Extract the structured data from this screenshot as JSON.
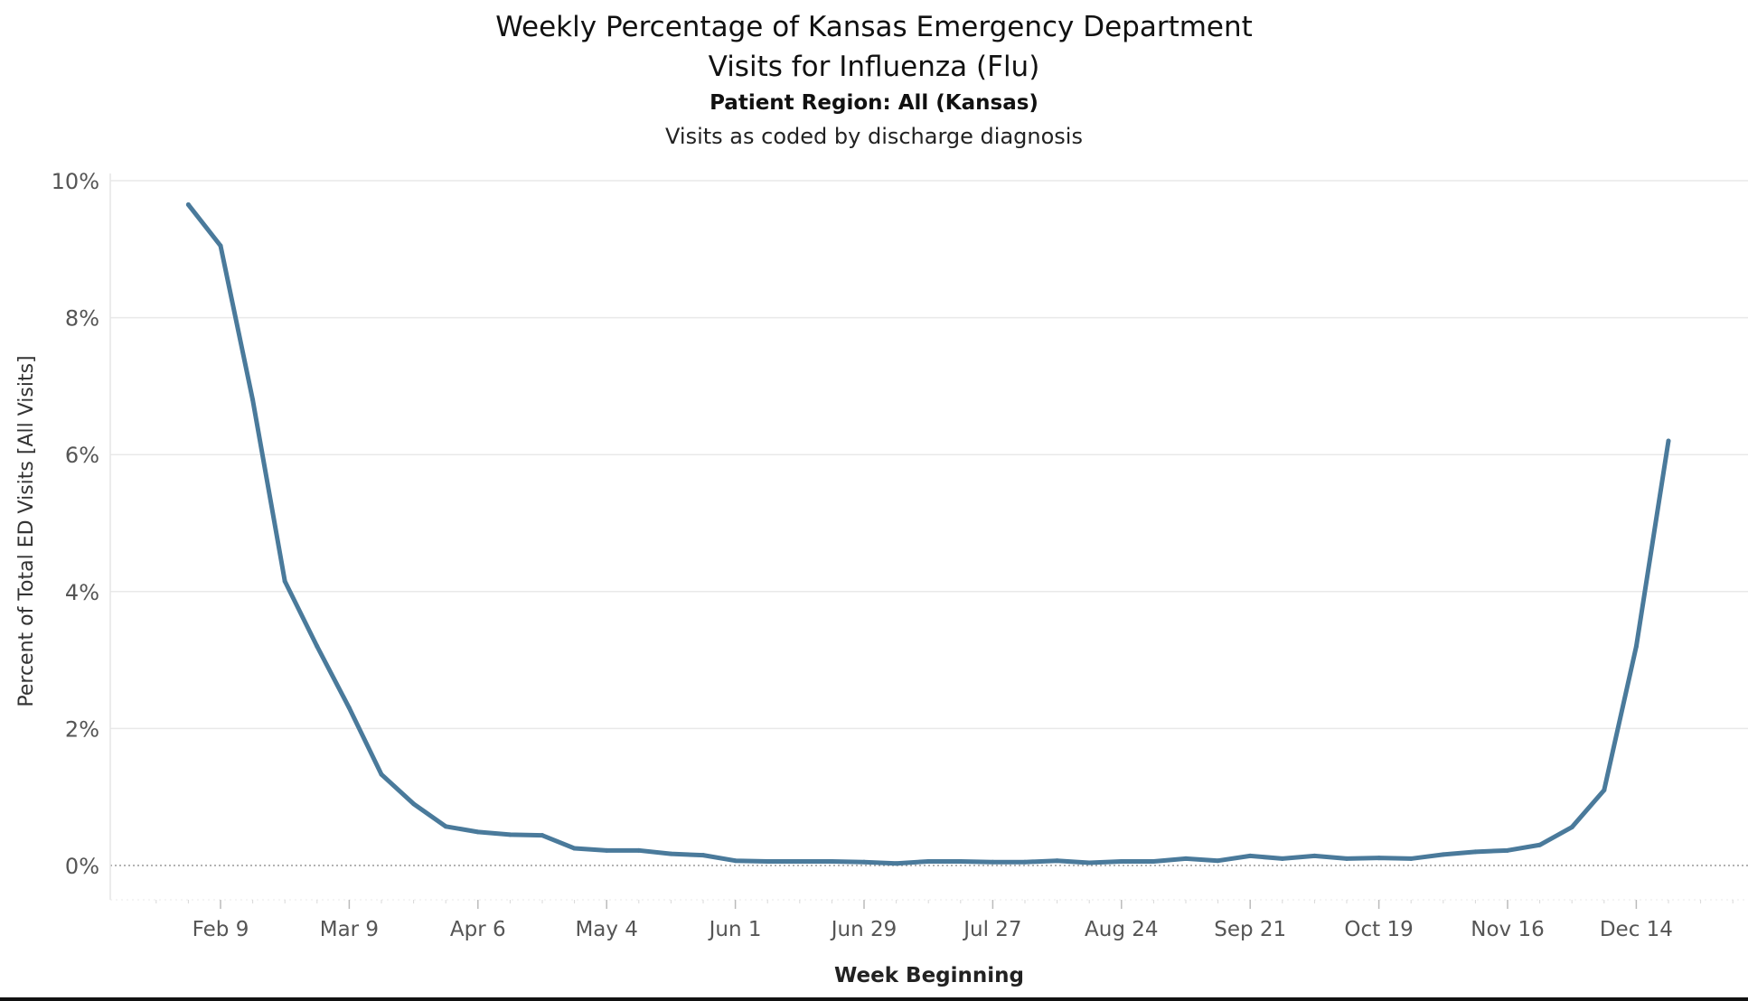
{
  "chart_data": {
    "type": "line",
    "title_lines": [
      "Weekly Percentage of Kansas Emergency Department",
      "Visits for Influenza (Flu)"
    ],
    "subtitle": "Patient Region: All (Kansas)",
    "note": "Visits as coded by discharge diagnosis",
    "xlabel": "Week Beginning",
    "ylabel": "Percent of Total ED Visits [All Visits]",
    "ylim": [
      0,
      10
    ],
    "yticks": [
      0,
      2,
      4,
      6,
      8,
      10
    ],
    "ytick_labels": [
      "0%",
      "2%",
      "4%",
      "6%",
      "8%",
      "10%"
    ],
    "x_start_week": -1,
    "x_end_week": 48,
    "x_ticks": [
      {
        "week": 1,
        "label": "Feb 9"
      },
      {
        "week": 5,
        "label": "Mar 9"
      },
      {
        "week": 9,
        "label": "Apr 6"
      },
      {
        "week": 13,
        "label": "May 4"
      },
      {
        "week": 17,
        "label": "Jun 1"
      },
      {
        "week": 21,
        "label": "Jun 29"
      },
      {
        "week": 25,
        "label": "Jul 27"
      },
      {
        "week": 29,
        "label": "Aug 24"
      },
      {
        "week": 33,
        "label": "Sep 21"
      },
      {
        "week": 37,
        "label": "Oct 19"
      },
      {
        "week": 41,
        "label": "Nov 16"
      },
      {
        "week": 45,
        "label": "Dec 14"
      }
    ],
    "grid": true,
    "line_color": "#4a7a9b",
    "series": [
      {
        "name": "Influenza",
        "values": [
          9.65,
          9.05,
          6.8,
          4.15,
          3.2,
          2.3,
          1.33,
          0.9,
          0.57,
          0.49,
          0.45,
          0.44,
          0.25,
          0.22,
          0.22,
          0.17,
          0.15,
          0.07,
          0.06,
          0.06,
          0.06,
          0.05,
          0.03,
          0.06,
          0.06,
          0.05,
          0.05,
          0.07,
          0.04,
          0.06,
          0.06,
          0.1,
          0.07,
          0.14,
          0.1,
          0.14,
          0.1,
          0.11,
          0.1,
          0.16,
          0.2,
          0.22,
          0.3,
          0.56,
          1.1,
          3.2,
          6.2
        ]
      }
    ]
  }
}
